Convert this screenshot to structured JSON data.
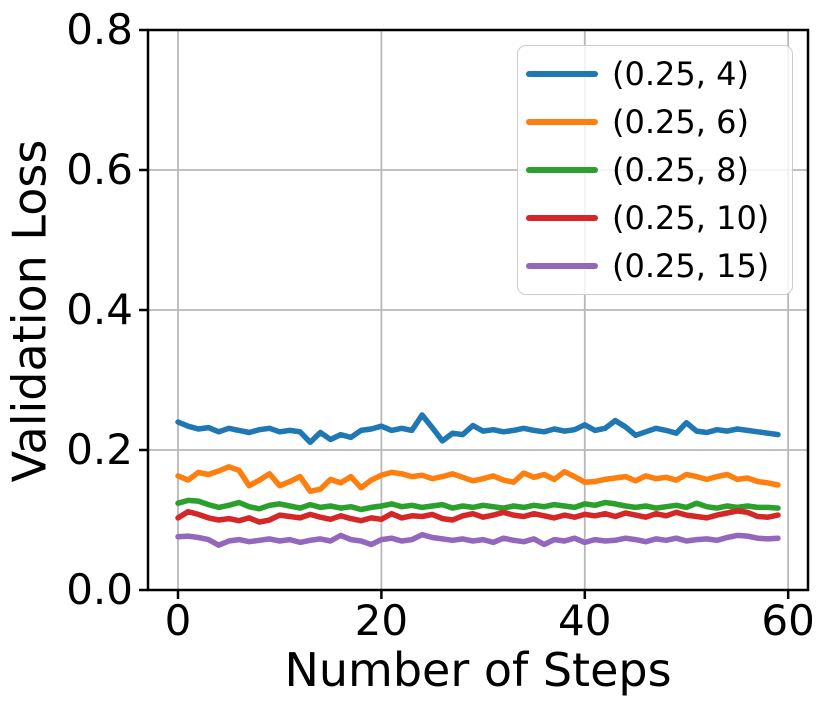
{
  "figure": {
    "background_color": "#ffffff",
    "text_color": "#000000",
    "grid_color": "#b8b8b8",
    "spine_color": "#000000"
  },
  "legend": {
    "entries": [
      {
        "label": "(0.25, 4)",
        "color": "#1f77b4"
      },
      {
        "label": "(0.25, 6)",
        "color": "#ff7f0e"
      },
      {
        "label": "(0.25, 8)",
        "color": "#2ca02c"
      },
      {
        "label": "(0.25, 10)",
        "color": "#d62728"
      },
      {
        "label": "(0.25, 15)",
        "color": "#9467bd"
      }
    ]
  },
  "chart_data": {
    "type": "line",
    "title": "",
    "xlabel": "Number of Steps",
    "ylabel": "Validation Loss",
    "xlim": [
      -2.95,
      61.95
    ],
    "ylim": [
      0.0,
      0.8
    ],
    "xticks": [
      0,
      20,
      40,
      60
    ],
    "yticks": [
      0.0,
      0.2,
      0.4,
      0.6,
      0.8
    ],
    "xtick_labels": [
      "0",
      "20",
      "40",
      "60"
    ],
    "ytick_labels": [
      "0.0",
      "0.2",
      "0.4",
      "0.6",
      "0.8"
    ],
    "grid": true,
    "legend_position": "upper right",
    "x": [
      0,
      1,
      2,
      3,
      4,
      5,
      6,
      7,
      8,
      9,
      10,
      11,
      12,
      13,
      14,
      15,
      16,
      17,
      18,
      19,
      20,
      21,
      22,
      23,
      24,
      25,
      26,
      27,
      28,
      29,
      30,
      31,
      32,
      33,
      34,
      35,
      36,
      37,
      38,
      39,
      40,
      41,
      42,
      43,
      44,
      45,
      46,
      47,
      48,
      49,
      50,
      51,
      52,
      53,
      54,
      55,
      56,
      57,
      58,
      59
    ],
    "series": [
      {
        "name": "(0.25, 4)",
        "color": "#1f77b4",
        "values": [
          0.24,
          0.234,
          0.23,
          0.232,
          0.226,
          0.231,
          0.228,
          0.225,
          0.229,
          0.231,
          0.226,
          0.228,
          0.226,
          0.211,
          0.225,
          0.215,
          0.222,
          0.218,
          0.228,
          0.23,
          0.234,
          0.228,
          0.231,
          0.228,
          0.25,
          0.232,
          0.213,
          0.224,
          0.222,
          0.235,
          0.227,
          0.229,
          0.226,
          0.228,
          0.231,
          0.228,
          0.226,
          0.23,
          0.227,
          0.229,
          0.236,
          0.228,
          0.231,
          0.242,
          0.233,
          0.221,
          0.226,
          0.231,
          0.228,
          0.224,
          0.239,
          0.227,
          0.225,
          0.229,
          0.227,
          0.23,
          0.228,
          0.226,
          0.224,
          0.222
        ]
      },
      {
        "name": "(0.25, 6)",
        "color": "#ff7f0e",
        "values": [
          0.163,
          0.157,
          0.168,
          0.165,
          0.17,
          0.176,
          0.171,
          0.149,
          0.157,
          0.166,
          0.149,
          0.155,
          0.162,
          0.141,
          0.144,
          0.158,
          0.153,
          0.162,
          0.146,
          0.157,
          0.164,
          0.168,
          0.166,
          0.162,
          0.164,
          0.159,
          0.162,
          0.166,
          0.161,
          0.156,
          0.159,
          0.163,
          0.157,
          0.154,
          0.167,
          0.161,
          0.165,
          0.158,
          0.169,
          0.162,
          0.154,
          0.155,
          0.158,
          0.16,
          0.162,
          0.156,
          0.163,
          0.159,
          0.161,
          0.157,
          0.165,
          0.162,
          0.158,
          0.162,
          0.165,
          0.158,
          0.16,
          0.155,
          0.153,
          0.15
        ]
      },
      {
        "name": "(0.25, 8)",
        "color": "#2ca02c",
        "values": [
          0.124,
          0.128,
          0.127,
          0.122,
          0.118,
          0.121,
          0.125,
          0.119,
          0.116,
          0.121,
          0.123,
          0.12,
          0.117,
          0.122,
          0.118,
          0.12,
          0.117,
          0.119,
          0.115,
          0.118,
          0.12,
          0.123,
          0.119,
          0.121,
          0.118,
          0.12,
          0.122,
          0.117,
          0.12,
          0.118,
          0.121,
          0.119,
          0.117,
          0.12,
          0.118,
          0.121,
          0.119,
          0.122,
          0.12,
          0.118,
          0.123,
          0.121,
          0.125,
          0.123,
          0.12,
          0.118,
          0.12,
          0.117,
          0.119,
          0.121,
          0.118,
          0.124,
          0.119,
          0.117,
          0.12,
          0.118,
          0.12,
          0.118,
          0.118,
          0.117
        ]
      },
      {
        "name": "(0.25, 10)",
        "color": "#d62728",
        "values": [
          0.103,
          0.112,
          0.108,
          0.103,
          0.1,
          0.102,
          0.099,
          0.103,
          0.097,
          0.1,
          0.107,
          0.105,
          0.103,
          0.108,
          0.104,
          0.101,
          0.106,
          0.102,
          0.099,
          0.103,
          0.101,
          0.109,
          0.103,
          0.106,
          0.105,
          0.108,
          0.102,
          0.1,
          0.106,
          0.109,
          0.104,
          0.107,
          0.111,
          0.107,
          0.105,
          0.109,
          0.106,
          0.103,
          0.107,
          0.104,
          0.108,
          0.106,
          0.109,
          0.105,
          0.11,
          0.107,
          0.104,
          0.109,
          0.106,
          0.111,
          0.107,
          0.105,
          0.103,
          0.107,
          0.11,
          0.113,
          0.111,
          0.105,
          0.104,
          0.107
        ]
      },
      {
        "name": "(0.25, 15)",
        "color": "#9467bd",
        "values": [
          0.076,
          0.077,
          0.075,
          0.072,
          0.064,
          0.07,
          0.072,
          0.069,
          0.071,
          0.073,
          0.07,
          0.072,
          0.068,
          0.071,
          0.073,
          0.07,
          0.078,
          0.072,
          0.07,
          0.065,
          0.072,
          0.074,
          0.07,
          0.072,
          0.079,
          0.075,
          0.073,
          0.071,
          0.073,
          0.07,
          0.072,
          0.068,
          0.074,
          0.071,
          0.069,
          0.073,
          0.065,
          0.072,
          0.07,
          0.074,
          0.068,
          0.072,
          0.07,
          0.071,
          0.074,
          0.072,
          0.069,
          0.073,
          0.071,
          0.074,
          0.07,
          0.072,
          0.073,
          0.071,
          0.075,
          0.078,
          0.077,
          0.074,
          0.073,
          0.074
        ]
      }
    ]
  }
}
